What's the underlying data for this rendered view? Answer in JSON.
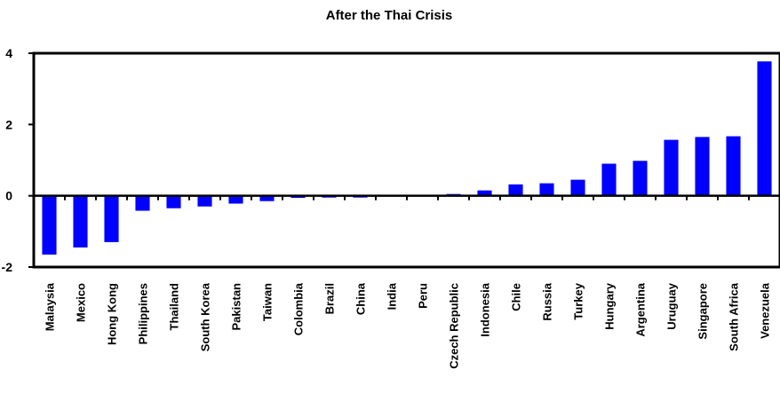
{
  "chart_data": {
    "type": "bar",
    "title": "After the Thai Crisis",
    "xlabel": "",
    "ylabel": "",
    "ylim": [
      -2,
      4
    ],
    "yticks": [
      -2,
      0,
      2,
      4
    ],
    "grid": false,
    "legend": "none",
    "bar_color": "#0000FF",
    "categories": [
      "Malaysia",
      "Mexico",
      "Hong Kong",
      "Philippines",
      "Thailand",
      "South Korea",
      "Pakistan",
      "Taiwan",
      "Colombia",
      "Brazil",
      "China",
      "India",
      "Peru",
      "Czech Republic",
      "Indonesia",
      "Chile",
      "Russia",
      "Turkey",
      "Hungary",
      "Argentina",
      "Uruguay",
      "Singapore",
      "South Africa",
      "Venezuela"
    ],
    "values": [
      -1.65,
      -1.45,
      -1.3,
      -0.42,
      -0.35,
      -0.3,
      -0.22,
      -0.15,
      -0.06,
      -0.05,
      -0.05,
      -0.02,
      0.0,
      0.05,
      0.15,
      0.32,
      0.35,
      0.45,
      0.9,
      0.98,
      1.57,
      1.65,
      1.67,
      3.77
    ]
  }
}
